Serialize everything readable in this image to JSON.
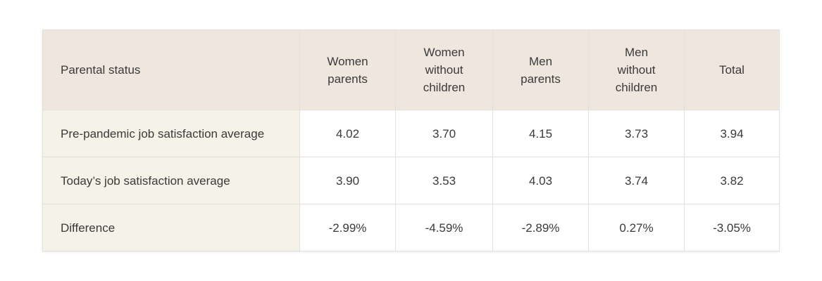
{
  "chart_data": {
    "type": "table",
    "columns": [
      "Parental status",
      "Women parents",
      "Women without children",
      "Men parents",
      "Men without children",
      "Total"
    ],
    "rows": [
      {
        "label": "Pre-pandemic job satisfaction average",
        "values": [
          "4.02",
          "3.70",
          "4.15",
          "3.73",
          "3.94"
        ]
      },
      {
        "label": "Today’s job satisfaction average",
        "values": [
          "3.90",
          "3.53",
          "4.03",
          "3.74",
          "3.82"
        ]
      },
      {
        "label": "Difference",
        "values": [
          "-2.99%",
          "-4.59%",
          "-2.89%",
          "0.27%",
          "-3.05%"
        ]
      }
    ]
  },
  "colors": {
    "header_background": "#efe7de",
    "row_label_background": "#f5f2e7",
    "cell_background": "#ffffff",
    "border": "#e2e0dc",
    "text": "#3a3a3a"
  }
}
